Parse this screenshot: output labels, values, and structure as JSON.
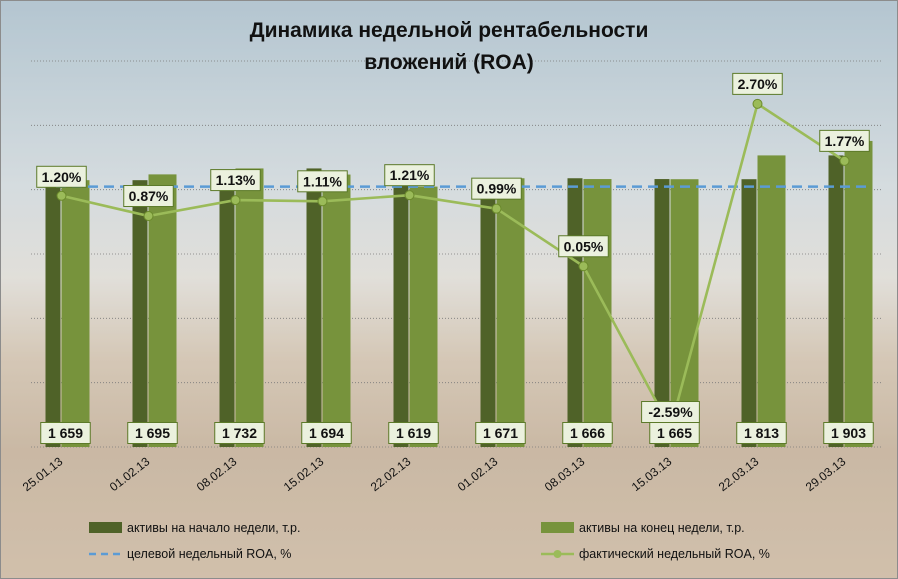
{
  "chart_data": {
    "type": "bar",
    "title": [
      "Динамика недельной рентабельности",
      "вложений (ROA)"
    ],
    "categories": [
      "25.01.13",
      "01.02.13",
      "08.02.13",
      "15.02.13",
      "22.02.13",
      "01.02.13",
      "08.03.13",
      "15.03.13",
      "22.03.13",
      "29.03.13"
    ],
    "series": [
      {
        "name": "активы на начало  недели, т.р.",
        "kind": "bar",
        "color": "#4f6228",
        "values": [
          1618,
          1659,
          1695,
          1732,
          1694,
          1619,
          1671,
          1666,
          1665,
          1813
        ]
      },
      {
        "name": "активы на конец недели, т.р.",
        "kind": "bar",
        "color": "#77933c",
        "values": [
          1659,
          1695,
          1732,
          1694,
          1619,
          1671,
          1666,
          1665,
          1813,
          1903
        ]
      },
      {
        "name": "целевой недельный ROA, %",
        "kind": "dashed-line",
        "color": "#5b9bd5",
        "values": [
          1.35,
          1.35,
          1.35,
          1.35,
          1.35,
          1.35,
          1.35,
          1.35,
          1.35,
          1.35
        ]
      },
      {
        "name": "фактический недельный ROA, %",
        "kind": "line-markers",
        "color": "#9bbb59",
        "values": [
          1.2,
          0.87,
          1.13,
          1.11,
          1.21,
          0.99,
          0.05,
          -2.59,
          2.7,
          1.77
        ]
      }
    ],
    "bar_labels": [
      "1 659",
      "1 695",
      "1 732",
      "1 694",
      "1 619",
      "1 671",
      "1 666",
      "1 665",
      "1 813",
      "1 903"
    ],
    "roa_labels": [
      "1.20%",
      "0.87%",
      "1.13%",
      "1.11%",
      "1.21%",
      "0.99%",
      "0.05%",
      "-2.59%",
      "2.70%",
      "1.77%"
    ],
    "negative_label_color": "#e00000",
    "bar_axis_range": [
      0,
      2400
    ],
    "roa_axis_range": [
      -2.9,
      3.4
    ],
    "grid": true,
    "legend_position": "bottom"
  }
}
